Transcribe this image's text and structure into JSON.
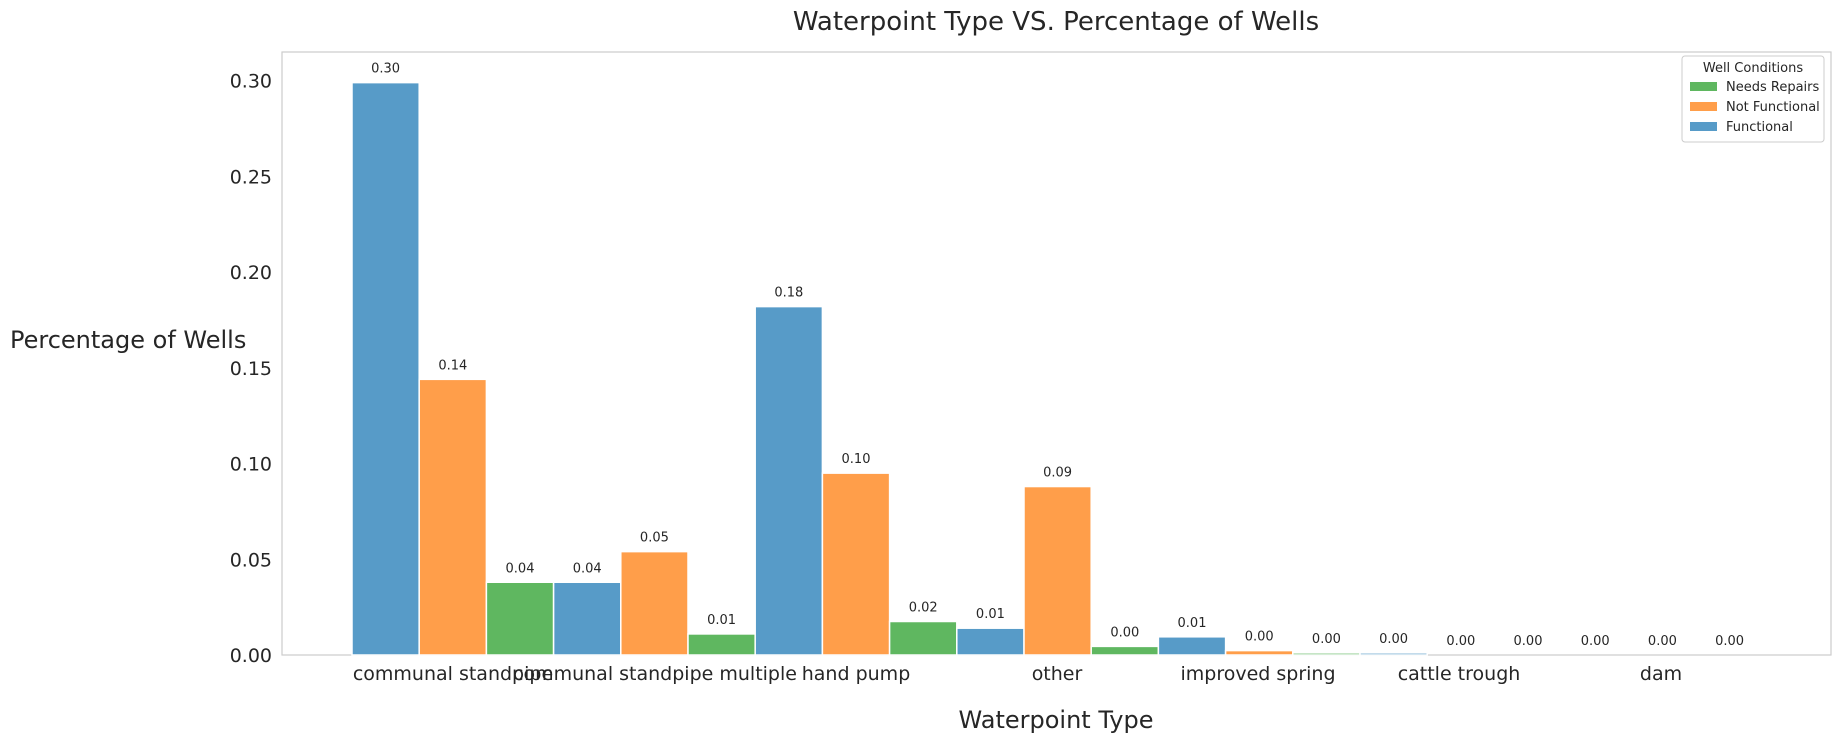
{
  "chart_data": {
    "type": "bar",
    "title": "Waterpoint Type VS. Percentage of Wells",
    "xlabel": "Waterpoint Type",
    "ylabel": "Percentage of Wells",
    "ylim": [
      0,
      0.315
    ],
    "yticks": [
      "0.00",
      "0.05",
      "0.10",
      "0.15",
      "0.20",
      "0.25",
      "0.30"
    ],
    "categories": [
      "communal standpipe",
      "communal standpipe multiple",
      "hand pump",
      "other",
      "improved spring",
      "cattle trough",
      "dam"
    ],
    "grid": false,
    "legend_placement": "top-right",
    "legend_title": "Well Conditions",
    "legend": [
      {
        "name": "Needs Repairs",
        "color": "#5fb760"
      },
      {
        "name": "Not Functional",
        "color": "#ff9e4a"
      },
      {
        "name": "Functional",
        "color": "#579bc8"
      }
    ],
    "bars": [
      {
        "series": "Functional",
        "value": 0.299,
        "label": "0.30"
      },
      {
        "series": "Not Functional",
        "value": 0.144,
        "label": "0.14"
      },
      {
        "series": "Needs Repairs",
        "value": 0.038,
        "label": "0.04"
      },
      {
        "series": "Functional",
        "value": 0.038,
        "label": "0.04"
      },
      {
        "series": "Not Functional",
        "value": 0.054,
        "label": "0.05"
      },
      {
        "series": "Needs Repairs",
        "value": 0.011,
        "label": "0.01"
      },
      {
        "series": "Functional",
        "value": 0.182,
        "label": "0.18"
      },
      {
        "series": "Not Functional",
        "value": 0.095,
        "label": "0.10"
      },
      {
        "series": "Needs Repairs",
        "value": 0.0175,
        "label": "0.02"
      },
      {
        "series": "Functional",
        "value": 0.014,
        "label": "0.01"
      },
      {
        "series": "Not Functional",
        "value": 0.088,
        "label": "0.09"
      },
      {
        "series": "Needs Repairs",
        "value": 0.0045,
        "label": "0.00"
      },
      {
        "series": "Functional",
        "value": 0.0095,
        "label": "0.01"
      },
      {
        "series": "Not Functional",
        "value": 0.0023,
        "label": "0.00"
      },
      {
        "series": "Needs Repairs",
        "value": 0.0011,
        "label": "0.00"
      },
      {
        "series": "Functional",
        "value": 0.0011,
        "label": "0.00"
      },
      {
        "series": "Not Functional",
        "value": 0.0,
        "label": "0.00"
      },
      {
        "series": "Needs Repairs",
        "value": 0.0,
        "label": "0.00"
      },
      {
        "series": "Functional",
        "value": 0.0,
        "label": "0.00"
      },
      {
        "series": "Not Functional",
        "value": 0.0,
        "label": "0.00"
      },
      {
        "series": "Needs Repairs",
        "value": 0.0,
        "label": "0.00"
      }
    ]
  }
}
